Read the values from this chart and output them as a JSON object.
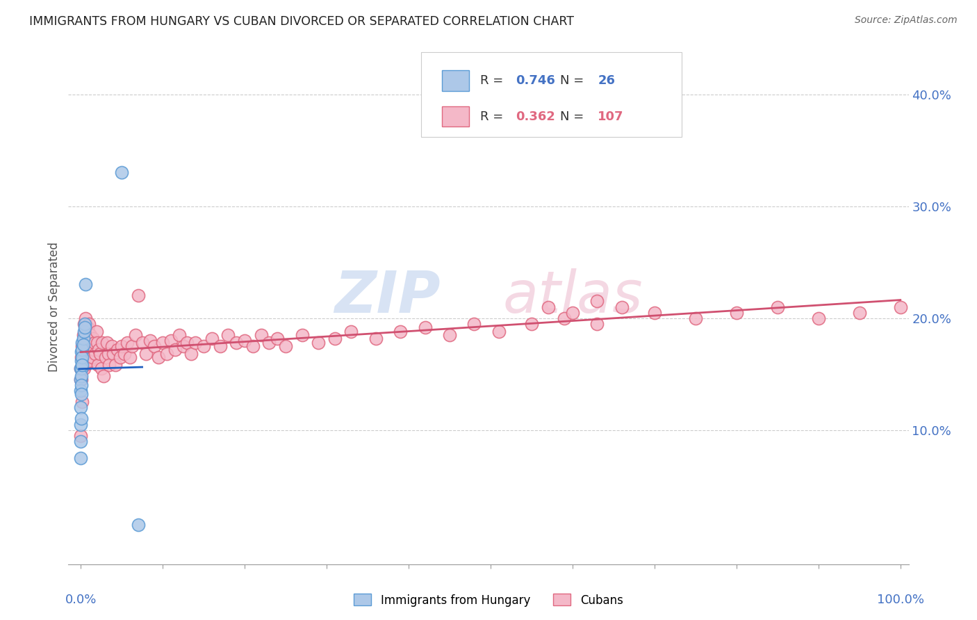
{
  "title": "IMMIGRANTS FROM HUNGARY VS CUBAN DIVORCED OR SEPARATED CORRELATION CHART",
  "source": "Source: ZipAtlas.com",
  "ylabel": "Divorced or Separated",
  "legend_hungary_r": "0.746",
  "legend_hungary_n": "26",
  "legend_cuba_r": "0.362",
  "legend_cuba_n": "107",
  "legend_label_hungary": "Immigrants from Hungary",
  "legend_label_cuba": "Cubans",
  "hungary_color": "#adc8e8",
  "hungary_edge_color": "#5b9bd5",
  "cuba_color": "#f4b8c8",
  "cuba_edge_color": "#e06880",
  "hungary_line_color": "#2060c0",
  "cuba_line_color": "#d05070",
  "xlim": [
    0.0,
    1.0
  ],
  "ylim": [
    0.0,
    0.42
  ],
  "ytick_vals": [
    0.1,
    0.2,
    0.3,
    0.4
  ],
  "ytick_labels": [
    "10.0%",
    "20.0%",
    "30.0%",
    "40.0%"
  ],
  "hungary_x": [
    0.0,
    0.0,
    0.0,
    0.0,
    0.0,
    0.0,
    0.0,
    0.001,
    0.001,
    0.001,
    0.001,
    0.001,
    0.001,
    0.001,
    0.002,
    0.002,
    0.002,
    0.002,
    0.003,
    0.003,
    0.004,
    0.005,
    0.005,
    0.006,
    0.05,
    0.07
  ],
  "hungary_y": [
    0.155,
    0.145,
    0.135,
    0.12,
    0.105,
    0.09,
    0.075,
    0.17,
    0.162,
    0.155,
    0.148,
    0.14,
    0.132,
    0.11,
    0.178,
    0.172,
    0.165,
    0.158,
    0.182,
    0.176,
    0.188,
    0.195,
    0.192,
    0.23,
    0.33,
    0.015
  ],
  "cuba_x": [
    0.001,
    0.001,
    0.002,
    0.002,
    0.002,
    0.003,
    0.003,
    0.004,
    0.004,
    0.004,
    0.005,
    0.005,
    0.005,
    0.006,
    0.006,
    0.007,
    0.007,
    0.008,
    0.008,
    0.009,
    0.009,
    0.01,
    0.01,
    0.011,
    0.012,
    0.013,
    0.014,
    0.015,
    0.016,
    0.017,
    0.018,
    0.019,
    0.02,
    0.021,
    0.022,
    0.024,
    0.025,
    0.026,
    0.028,
    0.03,
    0.032,
    0.034,
    0.035,
    0.038,
    0.04,
    0.042,
    0.045,
    0.048,
    0.05,
    0.053,
    0.057,
    0.06,
    0.063,
    0.067,
    0.07,
    0.075,
    0.08,
    0.085,
    0.09,
    0.095,
    0.1,
    0.105,
    0.11,
    0.115,
    0.12,
    0.125,
    0.13,
    0.135,
    0.14,
    0.15,
    0.16,
    0.17,
    0.18,
    0.19,
    0.2,
    0.21,
    0.22,
    0.23,
    0.24,
    0.25,
    0.27,
    0.29,
    0.31,
    0.33,
    0.36,
    0.39,
    0.42,
    0.45,
    0.48,
    0.51,
    0.55,
    0.59,
    0.63,
    0.57,
    0.6,
    0.63,
    0.66,
    0.7,
    0.75,
    0.8,
    0.85,
    0.9,
    0.95,
    1.0,
    0.0,
    0.0,
    0.0
  ],
  "cuba_y": [
    0.165,
    0.145,
    0.175,
    0.155,
    0.125,
    0.185,
    0.165,
    0.195,
    0.175,
    0.155,
    0.188,
    0.172,
    0.158,
    0.2,
    0.178,
    0.185,
    0.165,
    0.192,
    0.172,
    0.188,
    0.168,
    0.195,
    0.178,
    0.162,
    0.185,
    0.175,
    0.165,
    0.182,
    0.172,
    0.178,
    0.168,
    0.188,
    0.178,
    0.158,
    0.172,
    0.168,
    0.155,
    0.178,
    0.148,
    0.165,
    0.178,
    0.168,
    0.158,
    0.175,
    0.168,
    0.158,
    0.172,
    0.165,
    0.175,
    0.168,
    0.178,
    0.165,
    0.175,
    0.185,
    0.22,
    0.178,
    0.168,
    0.18,
    0.175,
    0.165,
    0.178,
    0.168,
    0.18,
    0.172,
    0.185,
    0.175,
    0.178,
    0.168,
    0.178,
    0.175,
    0.182,
    0.175,
    0.185,
    0.178,
    0.18,
    0.175,
    0.185,
    0.178,
    0.182,
    0.175,
    0.185,
    0.178,
    0.182,
    0.188,
    0.182,
    0.188,
    0.192,
    0.185,
    0.195,
    0.188,
    0.195,
    0.2,
    0.195,
    0.21,
    0.205,
    0.215,
    0.21,
    0.205,
    0.2,
    0.205,
    0.21,
    0.2,
    0.205,
    0.21,
    0.155,
    0.145,
    0.095
  ]
}
